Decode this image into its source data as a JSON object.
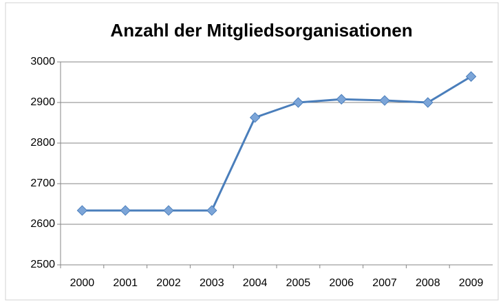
{
  "chart_data": {
    "type": "line",
    "title": "Anzahl der Mitgliedsorganisationen",
    "categories": [
      "2000",
      "2001",
      "2002",
      "2003",
      "2004",
      "2005",
      "2006",
      "2007",
      "2008",
      "2009"
    ],
    "values": [
      2634,
      2634,
      2634,
      2634,
      2863,
      2900,
      2908,
      2905,
      2900,
      2964
    ],
    "color": "#4a7ebb",
    "ylim": [
      2500,
      3000
    ],
    "yticks": [
      2500,
      2600,
      2700,
      2800,
      2900,
      3000
    ],
    "grid": true
  }
}
